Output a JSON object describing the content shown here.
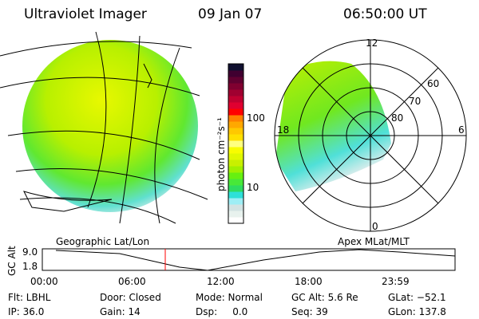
{
  "header": {
    "instrument": "Ultraviolet Imager",
    "date": "09 Jan 07",
    "time": "06:50:00 UT"
  },
  "colorbar": {
    "label": "photon cm⁻²s⁻¹",
    "ticks": [
      "100",
      "10"
    ],
    "colors": [
      "#ffffff",
      "#e8f2ee",
      "#d3e3e3",
      "#9eeef5",
      "#2ee0d8",
      "#2edc60",
      "#48e838",
      "#66f010",
      "#a0f000",
      "#c8f000",
      "#e0f800",
      "#f8fc00",
      "#ffff80",
      "#ffe000",
      "#ffc800",
      "#ffa800",
      "#ff8000",
      "#ff0000",
      "#e00030",
      "#c00030",
      "#a00030",
      "#800030",
      "#600030",
      "#400030",
      "#101030"
    ]
  },
  "polar": {
    "mlt_labels": [
      "12",
      "18",
      "6",
      "0"
    ],
    "lat_labels": [
      "60",
      "70",
      "80"
    ]
  },
  "timeline": {
    "left_label": "Geographic Lat/Lon",
    "right_label": "Apex MLat/MLT",
    "ylabel": "GC Alt",
    "yticks": [
      "9.0",
      "1.8"
    ],
    "xticks": [
      "00:00",
      "06:00",
      "12:00",
      "18:00",
      "23:59"
    ],
    "current_marker_color": "#ff0000"
  },
  "status": {
    "flt": "Flt: LBHL",
    "ip": "IP: 36.0",
    "door": "Door: Closed",
    "gain": "Gain: 14",
    "mode": "Mode: Normal",
    "dsp": "Dsp:     0.0",
    "gcalt": "GC Alt: 5.6 Re",
    "seq": "Seq: 39",
    "glat": "GLat: −52.1",
    "glon": "GLon: 137.8"
  }
}
